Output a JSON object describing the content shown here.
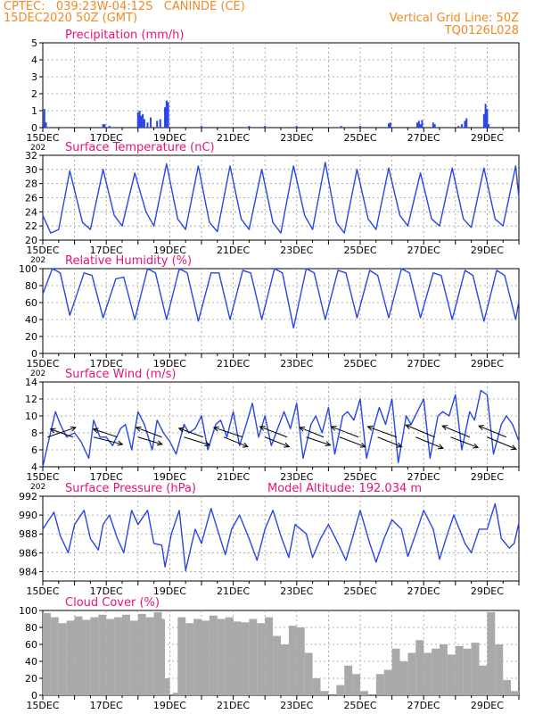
{
  "header": {
    "station": "CPTEC:   039:23W-04:12S   CANINDE (CE)",
    "date": "15DEC2020 50Z (GMT)",
    "vgrid": "Vertical Grid Line: 50Z",
    "code": "TQ0126L028"
  },
  "colors": {
    "title": "#e8127a",
    "header": "#f08a24",
    "series": "#2846e6",
    "cloud": "#a9a9a9",
    "grid": "#9a9a9a"
  },
  "chart_data": [
    {
      "type": "bar",
      "title": "Precipitation (mm/h)",
      "ylim": [
        0,
        5
      ],
      "yticks": [
        "0",
        "1",
        "2",
        "3",
        "4",
        "5"
      ],
      "xtick_labels": [
        "15DEC",
        "17DEC",
        "19DEC",
        "21DEC",
        "23DEC",
        "25DEC",
        "27DEC",
        "29DEC"
      ],
      "x_partial_label": "202",
      "x": [
        15.05,
        15.1,
        16.9,
        16.95,
        17.1,
        18.0,
        18.05,
        18.1,
        18.15,
        18.2,
        18.3,
        18.4,
        18.6,
        18.7,
        18.85,
        18.9,
        18.95,
        20.0,
        21.5,
        22.0,
        23.0,
        24.4,
        25.0,
        25.9,
        25.95,
        26.8,
        26.85,
        26.9,
        26.95,
        27.3,
        27.35,
        28.1,
        28.2,
        28.3,
        28.35,
        28.9,
        28.95,
        29.0,
        29.05
      ],
      "values": [
        1.1,
        0.3,
        0.2,
        0.2,
        0.1,
        0.9,
        1.0,
        0.7,
        0.8,
        0.5,
        0.3,
        0.6,
        0.4,
        0.5,
        1.2,
        1.6,
        1.5,
        0.1,
        0.1,
        0.1,
        0.1,
        0.1,
        0.1,
        0.25,
        0.3,
        0.3,
        0.4,
        0.2,
        0.45,
        0.3,
        0.2,
        0.1,
        0.2,
        0.4,
        0.55,
        0.8,
        1.4,
        1.1,
        0.2
      ]
    },
    {
      "type": "line",
      "title": "Surface Temperature (nC)",
      "ylim": [
        20,
        32
      ],
      "yticks": [
        "20",
        "22",
        "24",
        "26",
        "28",
        "30",
        "32"
      ],
      "xtick_labels": [
        "15DEC",
        "17DEC",
        "19DEC",
        "21DEC",
        "23DEC",
        "25DEC",
        "27DEC",
        "29DEC"
      ],
      "x_partial_label": "202",
      "series": [
        {
          "x": [
            15.0,
            15.25,
            15.5,
            15.85,
            16.25,
            16.5,
            16.9,
            17.25,
            17.5,
            17.9,
            18.25,
            18.5,
            18.9,
            19.25,
            19.5,
            19.9,
            20.25,
            20.5,
            20.9,
            21.25,
            21.5,
            21.9,
            22.25,
            22.5,
            22.9,
            23.25,
            23.5,
            23.9,
            24.25,
            24.5,
            24.9,
            25.25,
            25.5,
            25.9,
            26.25,
            26.5,
            26.9,
            27.25,
            27.5,
            27.9,
            28.25,
            28.5,
            28.9,
            29.25,
            29.5,
            29.9,
            30.0
          ],
          "y": [
            23.5,
            21.0,
            21.5,
            29.8,
            22.5,
            21.5,
            30.0,
            23.5,
            22.0,
            29.5,
            24.0,
            22.0,
            30.8,
            23.0,
            21.5,
            30.5,
            22.5,
            21.2,
            30.5,
            23.0,
            21.5,
            30.0,
            22.5,
            21.0,
            30.5,
            23.5,
            21.5,
            31.0,
            22.5,
            21.0,
            30.0,
            23.0,
            21.5,
            30.2,
            23.5,
            22.0,
            29.5,
            23.0,
            22.0,
            30.2,
            23.0,
            21.8,
            30.2,
            23.0,
            22.0,
            30.5,
            26.0
          ]
        }
      ]
    },
    {
      "type": "line",
      "title": "Relative Humidity (%)",
      "ylim": [
        0,
        100
      ],
      "yticks": [
        "0",
        "20",
        "40",
        "60",
        "80",
        "100"
      ],
      "xtick_labels": [
        "15DEC",
        "17DEC",
        "19DEC",
        "21DEC",
        "23DEC",
        "25DEC",
        "27DEC",
        "29DEC"
      ],
      "x_partial_label": "202",
      "series": [
        {
          "x": [
            15.0,
            15.3,
            15.55,
            15.85,
            16.3,
            16.55,
            16.9,
            17.3,
            17.55,
            17.9,
            18.3,
            18.55,
            18.9,
            19.3,
            19.55,
            19.9,
            20.3,
            20.55,
            20.9,
            21.3,
            21.55,
            21.9,
            22.3,
            22.55,
            22.9,
            23.3,
            23.55,
            23.9,
            24.3,
            24.55,
            24.9,
            25.3,
            25.55,
            25.9,
            26.3,
            26.55,
            26.9,
            27.3,
            27.55,
            27.9,
            28.3,
            28.55,
            28.9,
            29.3,
            29.55,
            29.9,
            30.0
          ],
          "y": [
            70,
            100,
            95,
            45,
            95,
            92,
            42,
            88,
            90,
            40,
            100,
            95,
            40,
            100,
            95,
            38,
            95,
            95,
            40,
            98,
            95,
            40,
            100,
            95,
            30,
            100,
            95,
            40,
            98,
            95,
            42,
            98,
            92,
            42,
            100,
            95,
            42,
            95,
            92,
            40,
            98,
            92,
            38,
            98,
            92,
            40,
            62
          ]
        }
      ]
    },
    {
      "type": "line",
      "title": "Surface Wind (m/s)",
      "ylim": [
        4,
        14
      ],
      "yticks": [
        "4",
        "6",
        "8",
        "10",
        "12",
        "14"
      ],
      "xtick_labels": [
        "15DEC",
        "17DEC",
        "19DEC",
        "21DEC",
        "23DEC",
        "25DEC",
        "27DEC",
        "29DEC"
      ],
      "x_partial_label": "202",
      "series": [
        {
          "x": [
            15.0,
            15.15,
            15.4,
            15.55,
            15.75,
            16.0,
            16.2,
            16.45,
            16.6,
            16.8,
            17.0,
            17.2,
            17.45,
            17.6,
            17.8,
            18.0,
            18.2,
            18.45,
            18.6,
            18.8,
            19.0,
            19.2,
            19.45,
            19.6,
            19.8,
            20.0,
            20.2,
            20.45,
            20.6,
            20.8,
            21.0,
            21.2,
            21.45,
            21.6,
            21.8,
            22.0,
            22.2,
            22.45,
            22.6,
            22.8,
            23.0,
            23.2,
            23.45,
            23.6,
            23.8,
            24.0,
            24.2,
            24.45,
            24.6,
            24.8,
            25.0,
            25.2,
            25.45,
            25.6,
            25.8,
            26.0,
            26.2,
            26.45,
            26.6,
            26.8,
            27.0,
            27.2,
            27.45,
            27.6,
            27.8,
            28.0,
            28.2,
            28.45,
            28.6,
            28.8,
            29.0,
            29.2,
            29.45,
            29.6,
            29.8,
            30.0
          ],
          "y": [
            4.0,
            6.5,
            10.5,
            9.0,
            7.5,
            8.0,
            7.0,
            5.0,
            9.5,
            7.5,
            7.5,
            6.5,
            8.5,
            9.0,
            6.0,
            10.5,
            9.0,
            6.0,
            9.5,
            8.0,
            7.0,
            5.5,
            9.0,
            8.0,
            8.5,
            10.0,
            6.0,
            9.0,
            9.5,
            7.5,
            10.5,
            6.5,
            9.5,
            11.5,
            7.5,
            10.0,
            6.5,
            9.0,
            10.5,
            8.5,
            11.5,
            5.0,
            9.0,
            10.0,
            8.0,
            11.0,
            5.5,
            10.0,
            10.5,
            9.5,
            12.0,
            5.0,
            9.0,
            11.0,
            9.0,
            12.0,
            4.5,
            10.0,
            9.0,
            10.5,
            12.0,
            5.0,
            10.0,
            10.5,
            10.0,
            12.5,
            6.0,
            10.5,
            9.5,
            13.0,
            12.5,
            5.5,
            9.0,
            10.0,
            9.0,
            7.0
          ]
        }
      ],
      "wind_vectors": {
        "x": [
          15.15,
          15.95,
          16.6,
          17.35,
          18.0,
          18.75,
          19.45,
          20.05,
          20.7,
          21.3,
          22.0,
          22.7,
          23.3,
          23.85,
          24.35,
          24.95,
          25.55,
          26.15,
          26.75,
          27.35,
          27.85,
          28.45,
          29.0,
          29.6
        ],
        "u": [
          3.5,
          -2.8,
          3.6,
          -3.0,
          3.0,
          -3.2,
          3.2,
          -3.0,
          3.0,
          -3.6,
          3.0,
          -3.4,
          3.0,
          -3.0,
          3.2,
          -3.4,
          3.0,
          -3.6,
          3.4,
          -3.6,
          3.4,
          -3.4,
          3.6,
          -3.4
        ],
        "v": [
          1.2,
          1.0,
          -0.9,
          1.0,
          -0.9,
          1.2,
          -1.0,
          1.1,
          -1.2,
          1.2,
          -1.2,
          1.3,
          -1.0,
          1.2,
          -1.2,
          1.3,
          -1.2,
          1.3,
          -1.4,
          1.5,
          -1.3,
          1.4,
          -1.5,
          1.4
        ]
      }
    },
    {
      "type": "line",
      "title": "Surface Pressure (hPa)",
      "annotation": "Model Altitude: 192.034 m",
      "ylim": [
        983,
        992
      ],
      "yticks": [
        "984",
        "986",
        "988",
        "990",
        "992"
      ],
      "ytick_values": [
        984,
        986,
        988,
        990,
        992
      ],
      "xtick_labels": [
        "15DEC",
        "17DEC",
        "19DEC",
        "21DEC",
        "23DEC",
        "25DEC",
        "27DEC",
        "29DEC"
      ],
      "series": [
        {
          "x": [
            15.0,
            15.35,
            15.55,
            15.8,
            16.0,
            16.3,
            16.5,
            16.75,
            16.9,
            17.1,
            17.35,
            17.55,
            17.8,
            18.0,
            18.3,
            18.5,
            18.75,
            18.85,
            19.05,
            19.3,
            19.5,
            19.8,
            20.0,
            20.3,
            20.5,
            20.75,
            20.95,
            21.2,
            21.5,
            21.75,
            22.0,
            22.25,
            22.5,
            22.75,
            22.95,
            23.3,
            23.5,
            23.75,
            24.0,
            24.3,
            24.55,
            24.75,
            25.0,
            25.3,
            25.5,
            25.75,
            26.0,
            26.3,
            26.5,
            26.75,
            27.0,
            27.3,
            27.5,
            27.75,
            27.95,
            28.3,
            28.5,
            28.75,
            29.0,
            29.25,
            29.45,
            29.7,
            29.85,
            30.0
          ],
          "y": [
            988.5,
            990.3,
            987.8,
            986.0,
            989.0,
            990.5,
            987.5,
            986.3,
            989.0,
            990.0,
            987.5,
            986.0,
            990.5,
            989.0,
            990.5,
            987.0,
            986.8,
            984.5,
            988.0,
            990.5,
            984.1,
            988.5,
            987.0,
            990.7,
            988.5,
            985.8,
            988.5,
            990.0,
            987.5,
            985.2,
            988.5,
            990.5,
            987.8,
            985.5,
            989.0,
            988.0,
            985.5,
            987.5,
            989.0,
            987.0,
            985.2,
            987.5,
            990.5,
            987.0,
            985.0,
            987.5,
            989.5,
            988.5,
            985.6,
            988.0,
            990.5,
            988.5,
            985.3,
            988.0,
            990.0,
            987.0,
            986.0,
            988.5,
            988.5,
            991.2,
            987.5,
            986.5,
            987.0,
            989.2
          ]
        }
      ]
    },
    {
      "type": "bar",
      "title": "Cloud Cover (%)",
      "ylim": [
        0,
        100
      ],
      "yticks": [
        "0",
        "20",
        "40",
        "60",
        "80",
        "100"
      ],
      "xtick_labels": [
        "15DEC",
        "17DEC",
        "19DEC",
        "21DEC",
        "23DEC",
        "25DEC",
        "27DEC",
        "29DEC"
      ],
      "x": [
        15.0,
        15.25,
        15.5,
        15.75,
        16.0,
        16.25,
        16.5,
        16.75,
        17.0,
        17.25,
        17.5,
        17.75,
        18.0,
        18.25,
        18.5,
        18.75,
        18.85,
        19.0,
        19.1,
        19.25,
        19.5,
        19.75,
        20.0,
        20.25,
        20.5,
        20.75,
        21.0,
        21.25,
        21.5,
        21.75,
        22.0,
        22.25,
        22.5,
        22.75,
        23.0,
        23.25,
        23.5,
        23.75,
        24.0,
        24.25,
        24.5,
        24.75,
        25.0,
        25.25,
        25.5,
        25.75,
        26.0,
        26.25,
        26.5,
        26.75,
        27.0,
        27.25,
        27.5,
        27.75,
        28.0,
        28.25,
        28.5,
        28.75,
        29.0,
        29.25,
        29.5,
        29.75
      ],
      "values": [
        97,
        92,
        85,
        88,
        93,
        89,
        92,
        95,
        90,
        92,
        95,
        88,
        96,
        92,
        98,
        90,
        20,
        0,
        3,
        92,
        85,
        90,
        88,
        94,
        90,
        92,
        87,
        86,
        90,
        85,
        92,
        70,
        60,
        82,
        80,
        50,
        20,
        5,
        0,
        12,
        35,
        25,
        5,
        0,
        25,
        30,
        55,
        40,
        50,
        65,
        50,
        55,
        60,
        48,
        58,
        55,
        62,
        35,
        98,
        60,
        18,
        5
      ]
    }
  ]
}
